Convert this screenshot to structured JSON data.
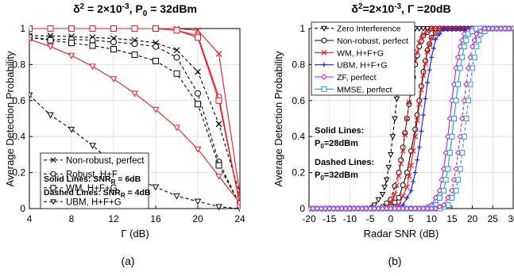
{
  "panels": [
    {
      "title_parts": [
        "δ",
        "2",
        " = 2×10",
        "-3",
        ", P",
        "0",
        " = 32dBm"
      ],
      "xlabel": "Γ (dB)",
      "ylabel": "Average Detection Probability",
      "caption": "(a)"
    },
    {
      "title_parts": [
        "δ",
        "2",
        "=2×10",
        "-3",
        ", Γ =20dB"
      ],
      "xlabel": "Radar SNR (dB)",
      "ylabel": "Average Detection Probability",
      "caption": "(b)"
    }
  ],
  "annotations_a": {
    "solid_main": "Solid Lines: SNR",
    "solid_sub": "R",
    "solid_tail": " = 6dB",
    "dashed_main": "Dashed Lines: SNR",
    "dashed_sub": "R",
    "dashed_tail": " = 4dB"
  },
  "annotations_b": {
    "solid_line1": "Solid Lines:",
    "solid_line2": "P",
    "solid_sub": "0",
    "solid_tail": "=28dBm",
    "dashed_line1": "Dashed Lines:",
    "dashed_line2": "P",
    "dashed_sub": "0",
    "dashed_tail": "=32dBm"
  },
  "colors": {
    "black": "#000000",
    "red": "#e8191f",
    "blue": "#1f1fe6",
    "magenta": "#c020c0",
    "cyan": "#1a9ad6"
  },
  "chart_data": [
    {
      "type": "line",
      "title": "δ2 = 2×10-3, P0 = 32dBm",
      "xlabel": "Γ (dB)",
      "ylabel": "Average Detection Probability",
      "xlim": [
        4,
        24
      ],
      "ylim": [
        0,
        1
      ],
      "xticks": [
        4,
        8,
        12,
        16,
        20,
        24
      ],
      "yticks": [
        0,
        0.2,
        0.4,
        0.6,
        0.8,
        1
      ],
      "grid": true,
      "legend_position": "bottom-left",
      "legend": [
        "Non-robust, perfect",
        "Robust, H+F",
        "WM, H+F+G",
        "UBM, H+F+G"
      ],
      "series": [
        {
          "name": "Non-robust, perfect",
          "marker": "x",
          "color": "black",
          "dash": true,
          "x": [
            4,
            6,
            8,
            10,
            12,
            14,
            16,
            18,
            20,
            22,
            24
          ],
          "y": [
            0.96,
            0.96,
            0.955,
            0.95,
            0.945,
            0.935,
            0.92,
            0.88,
            0.76,
            0.47,
            0.08
          ]
        },
        {
          "name": "Robust, H+F",
          "marker": "o",
          "color": "black",
          "dash": true,
          "x": [
            4,
            6,
            8,
            10,
            12,
            14,
            16,
            18,
            20,
            22,
            24
          ],
          "y": [
            0.95,
            0.94,
            0.94,
            0.935,
            0.925,
            0.915,
            0.9,
            0.84,
            0.64,
            0.26,
            0.02
          ]
        },
        {
          "name": "WM, H+F+G",
          "marker": "s",
          "color": "black",
          "dash": true,
          "x": [
            4,
            6,
            8,
            10,
            12,
            14,
            16,
            18,
            20,
            22,
            24
          ],
          "y": [
            0.95,
            0.935,
            0.92,
            0.905,
            0.885,
            0.855,
            0.82,
            0.75,
            0.58,
            0.24,
            0.02
          ]
        },
        {
          "name": "UBM, H+F+G",
          "marker": "v",
          "color": "black",
          "dash": true,
          "x": [
            4,
            6,
            8,
            10,
            12,
            14,
            16,
            18,
            20,
            22,
            24
          ],
          "y": [
            0.63,
            0.52,
            0.44,
            0.35,
            0.25,
            0.17,
            0.12,
            0.07,
            0.04,
            0.01,
            0.0
          ]
        },
        {
          "marker": "x",
          "color": "red",
          "dash": false,
          "x": [
            4,
            6,
            8,
            10,
            12,
            14,
            16,
            18,
            20,
            22,
            24
          ],
          "y": [
            1,
            1,
            1,
            1,
            1,
            1,
            1,
            1,
            0.99,
            0.86,
            0.08
          ]
        },
        {
          "marker": "o",
          "color": "red",
          "dash": false,
          "x": [
            4,
            6,
            8,
            10,
            12,
            14,
            16,
            18,
            20,
            22,
            24
          ],
          "y": [
            1,
            1,
            1,
            1,
            1,
            1,
            1,
            0.99,
            0.96,
            0.62,
            0.02
          ]
        },
        {
          "marker": "s",
          "color": "red",
          "dash": false,
          "x": [
            4,
            6,
            8,
            10,
            12,
            14,
            16,
            18,
            20,
            22,
            24
          ],
          "y": [
            1,
            1,
            1,
            1,
            1,
            1,
            1,
            0.99,
            0.95,
            0.6,
            0.02
          ]
        },
        {
          "marker": "v",
          "color": "red",
          "dash": false,
          "x": [
            4,
            6,
            8,
            10,
            12,
            14,
            16,
            18,
            20,
            22,
            24
          ],
          "y": [
            0.94,
            0.9,
            0.85,
            0.79,
            0.72,
            0.64,
            0.55,
            0.45,
            0.33,
            0.18,
            0.03
          ]
        }
      ]
    },
    {
      "type": "line",
      "title": "δ2=2×10-3, Γ =20dB",
      "xlabel": "Radar SNR (dB)",
      "ylabel": "Average Detection Probability",
      "xlim": [
        -20,
        30
      ],
      "ylim": [
        0,
        1
      ],
      "xticks": [
        -20,
        -15,
        -10,
        -5,
        0,
        5,
        10,
        15,
        20,
        25,
        30
      ],
      "yticks": [
        0,
        0.2,
        0.4,
        0.6,
        0.8,
        1
      ],
      "grid": true,
      "legend_position": "top-left",
      "legend": [
        "Zero Interference",
        "Non-robust, perfect",
        "WM, H+F+G",
        "UBM, H+F+G",
        "ZF, perfect",
        "MMSE, perfect"
      ],
      "series": [
        {
          "name": "Zero Interference",
          "marker": "v",
          "color": "black",
          "dash": true,
          "x": [
            -20,
            -10,
            -4,
            -2,
            -1,
            0,
            1,
            2,
            3,
            4,
            6,
            30
          ],
          "y": [
            0,
            0,
            0.02,
            0.08,
            0.16,
            0.3,
            0.5,
            0.72,
            0.88,
            0.96,
            1,
            1
          ]
        },
        {
          "name": "Non-robust, perfect",
          "marker": "o",
          "color": "black",
          "dash": false,
          "x": [
            -20,
            -5,
            0,
            2,
            4,
            6,
            7,
            8,
            9,
            10,
            12,
            30
          ],
          "y": [
            0,
            0,
            0.01,
            0.06,
            0.2,
            0.44,
            0.6,
            0.76,
            0.88,
            0.95,
            1,
            1
          ]
        },
        {
          "marker": "o",
          "color": "black",
          "dash": true,
          "x": [
            -20,
            -5,
            -2,
            0,
            2,
            3,
            4,
            5,
            6,
            7,
            8,
            10,
            30
          ],
          "y": [
            0,
            0,
            0.01,
            0.05,
            0.2,
            0.34,
            0.5,
            0.66,
            0.8,
            0.9,
            0.96,
            1,
            1
          ]
        },
        {
          "name": "WM, H+F+G",
          "marker": "x",
          "color": "red",
          "dash": false,
          "x": [
            -20,
            0,
            2,
            4,
            5,
            6,
            7,
            8,
            9,
            10,
            12,
            30
          ],
          "y": [
            0,
            0,
            0.02,
            0.12,
            0.24,
            0.4,
            0.58,
            0.74,
            0.87,
            0.95,
            1,
            1
          ]
        },
        {
          "marker": "x",
          "color": "red",
          "dash": true,
          "x": [
            -20,
            -2,
            0,
            1,
            2,
            3,
            4,
            5,
            6,
            7,
            8,
            10,
            30
          ],
          "y": [
            0,
            0,
            0.03,
            0.08,
            0.18,
            0.32,
            0.5,
            0.68,
            0.82,
            0.92,
            0.97,
            1,
            1
          ]
        },
        {
          "name": "UBM, H+F+G",
          "marker": "+",
          "color": "blue",
          "dash": false,
          "x": [
            -20,
            1,
            3,
            5,
            6,
            7,
            8,
            9,
            10,
            11,
            13,
            30
          ],
          "y": [
            0,
            0,
            0.02,
            0.1,
            0.2,
            0.34,
            0.52,
            0.7,
            0.84,
            0.94,
            1,
            1
          ]
        },
        {
          "name": "ZF, perfect",
          "marker": "d",
          "color": "magenta",
          "dash": false,
          "x": [
            -20,
            8,
            10,
            12,
            13,
            14,
            15,
            16,
            17,
            18,
            20,
            30
          ],
          "y": [
            0,
            0,
            0.02,
            0.1,
            0.22,
            0.4,
            0.6,
            0.78,
            0.9,
            0.97,
            1,
            1
          ]
        },
        {
          "name": "MMSE, perfect",
          "marker": "s",
          "color": "cyan",
          "dash": false,
          "x": [
            -20,
            9,
            11,
            13,
            14,
            15,
            16,
            17,
            18,
            19,
            21,
            30
          ],
          "y": [
            0,
            0,
            0.02,
            0.1,
            0.22,
            0.4,
            0.6,
            0.78,
            0.9,
            0.97,
            1,
            1
          ]
        },
        {
          "marker": "s",
          "color": "cyan",
          "dash": true,
          "x": [
            -20,
            12,
            14,
            16,
            17,
            18,
            19,
            20,
            21,
            22,
            24,
            30
          ],
          "y": [
            0,
            0,
            0.02,
            0.1,
            0.22,
            0.4,
            0.6,
            0.78,
            0.9,
            0.97,
            1,
            1
          ]
        },
        {
          "marker": "d",
          "color": "magenta",
          "dash": true,
          "x": [
            -20,
            11,
            13,
            15,
            16,
            17,
            18,
            19,
            20,
            21,
            23,
            30
          ],
          "y": [
            0,
            0,
            0.02,
            0.1,
            0.22,
            0.4,
            0.6,
            0.78,
            0.9,
            0.97,
            1,
            1
          ]
        }
      ]
    }
  ]
}
